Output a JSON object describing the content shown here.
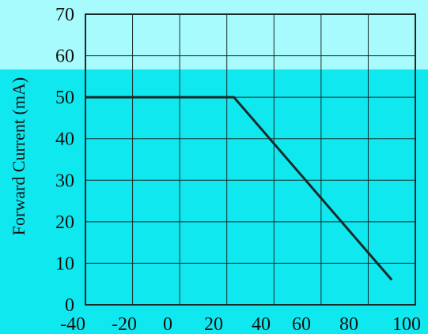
{
  "chart_data": {
    "type": "line",
    "title": "",
    "xlabel": "",
    "ylabel": "Forward Current (mA)",
    "xlim": [
      -40,
      100
    ],
    "ylim": [
      0,
      70
    ],
    "x_ticks": [
      "-40",
      "-20",
      "0",
      "20",
      "40",
      "60",
      "80",
      "100"
    ],
    "y_ticks": [
      "0",
      "10",
      "20",
      "30",
      "40",
      "50",
      "60",
      "70"
    ],
    "grid": true,
    "series": [
      {
        "x": [
          -40,
          23,
          90
        ],
        "y": [
          50,
          50,
          6
        ]
      }
    ],
    "colors": {
      "line": "#1a2a2a",
      "grid": "#1a2a2a",
      "text": "#111111",
      "background_top": "#a8fbfc",
      "background_main": "#10e8f0"
    }
  }
}
